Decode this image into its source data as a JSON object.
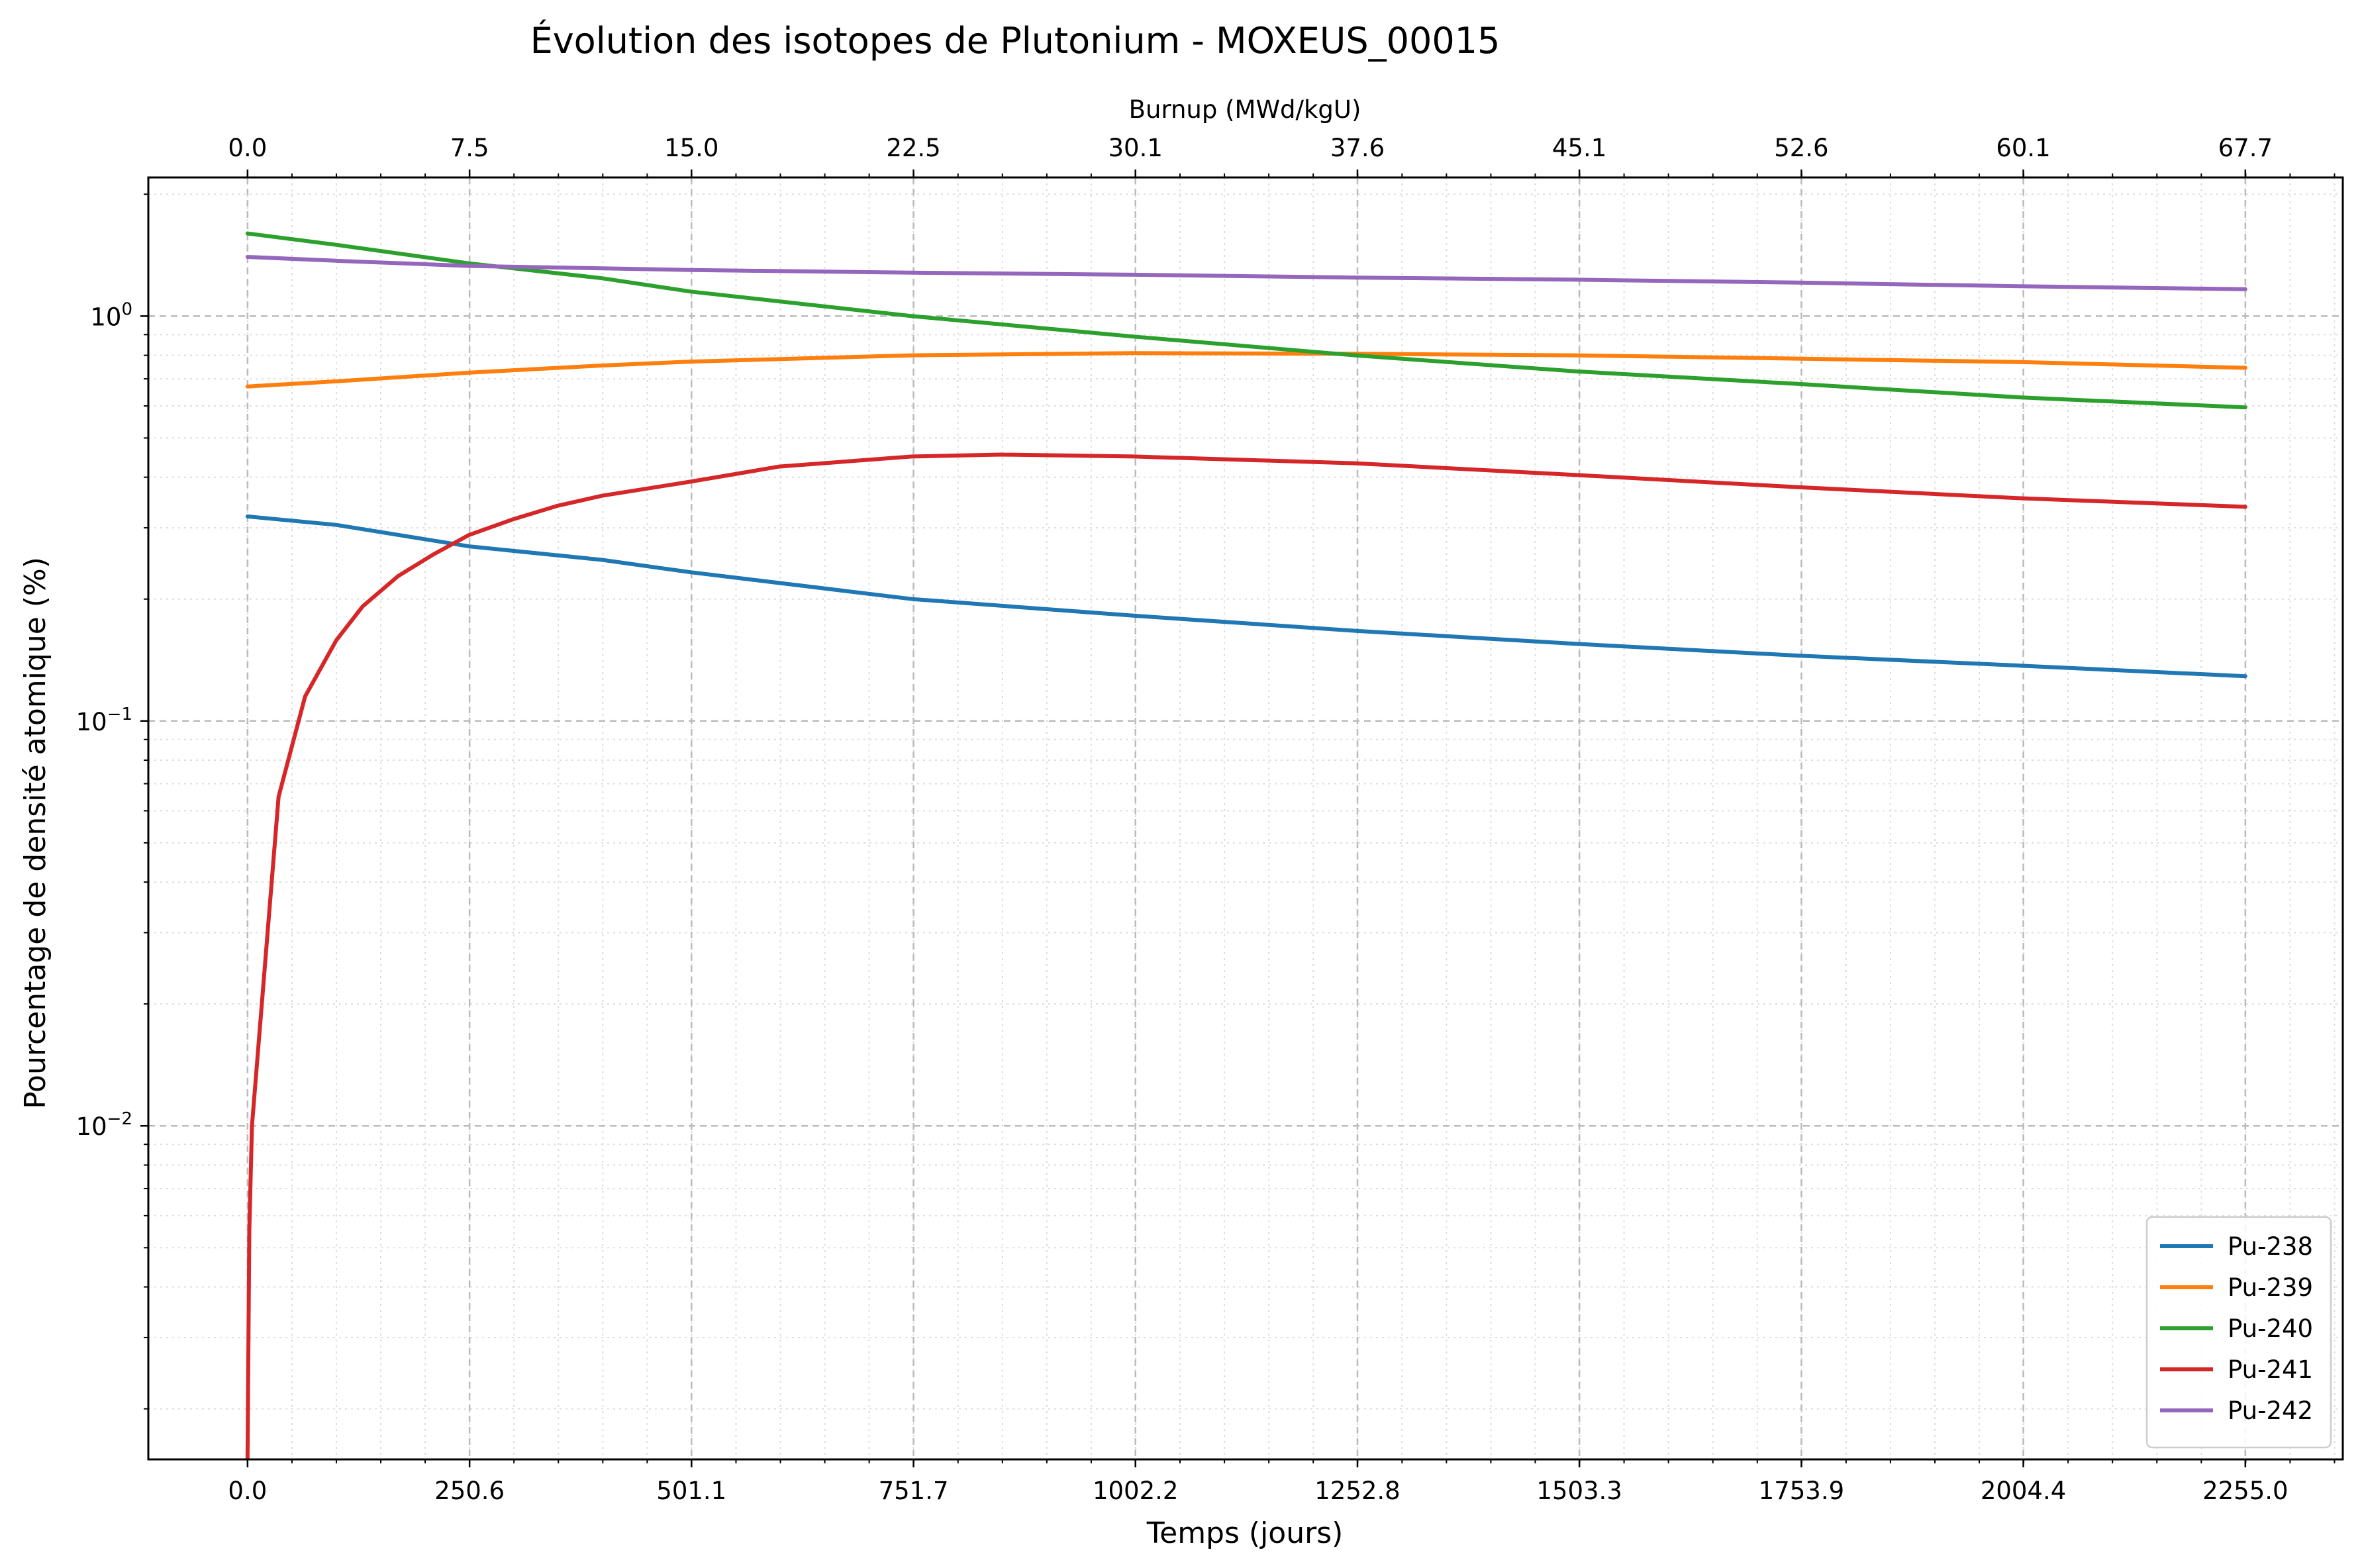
{
  "chart_data": {
    "type": "line",
    "title": "Évolution des isotopes de Plutonium - MOXEUS_00015",
    "xlabel": "Temps (jours)",
    "ylabel": "Pourcentage de densité atomique (%)",
    "top_xlabel": "Burnup (MWd/kgU)",
    "x_ticks": [
      "0.0",
      "250.6",
      "501.1",
      "751.7",
      "1002.2",
      "1252.8",
      "1503.3",
      "1753.9",
      "2004.4",
      "2255.0"
    ],
    "top_x_ticks": [
      "0.0",
      "7.5",
      "15.0",
      "22.5",
      "30.1",
      "37.6",
      "45.1",
      "52.6",
      "60.1",
      "67.7"
    ],
    "y_ticks": [
      {
        "base": "10",
        "exp": "0",
        "value": 1
      },
      {
        "base": "10",
        "exp": "−1",
        "value": 0.1
      },
      {
        "base": "10",
        "exp": "−2",
        "value": 0.01
      }
    ],
    "xlim": [
      -112,
      2365
    ],
    "ylim": [
      0.0015,
      2.2
    ],
    "y_scale": "log",
    "grid": true,
    "legend_position": "lower-right",
    "series": [
      {
        "name": "Pu-238",
        "color": "#1f77b4",
        "points": [
          [
            0,
            0.32
          ],
          [
            100,
            0.305
          ],
          [
            250,
            0.27
          ],
          [
            400,
            0.25
          ],
          [
            500,
            0.233
          ],
          [
            750,
            0.2
          ],
          [
            1000,
            0.182
          ],
          [
            1250,
            0.167
          ],
          [
            1500,
            0.155
          ],
          [
            1750,
            0.145
          ],
          [
            2000,
            0.137
          ],
          [
            2255,
            0.129
          ]
        ]
      },
      {
        "name": "Pu-239",
        "color": "#ff7f0e",
        "points": [
          [
            0,
            0.67
          ],
          [
            100,
            0.69
          ],
          [
            250,
            0.725
          ],
          [
            400,
            0.755
          ],
          [
            500,
            0.772
          ],
          [
            750,
            0.8
          ],
          [
            1000,
            0.81
          ],
          [
            1250,
            0.807
          ],
          [
            1500,
            0.8
          ],
          [
            1750,
            0.785
          ],
          [
            2000,
            0.77
          ],
          [
            2255,
            0.745
          ]
        ]
      },
      {
        "name": "Pu-240",
        "color": "#2ca02c",
        "points": [
          [
            0,
            1.6
          ],
          [
            100,
            1.5
          ],
          [
            250,
            1.35
          ],
          [
            400,
            1.24
          ],
          [
            500,
            1.15
          ],
          [
            750,
            1.0
          ],
          [
            1000,
            0.89
          ],
          [
            1250,
            0.8
          ],
          [
            1500,
            0.73
          ],
          [
            1750,
            0.68
          ],
          [
            2000,
            0.63
          ],
          [
            2255,
            0.595
          ]
        ]
      },
      {
        "name": "Pu-241",
        "color": "#d62728",
        "points": [
          [
            0,
            0.0015
          ],
          [
            2,
            0.0055
          ],
          [
            5,
            0.01
          ],
          [
            35,
            0.065
          ],
          [
            65,
            0.115
          ],
          [
            100,
            0.158
          ],
          [
            130,
            0.192
          ],
          [
            170,
            0.228
          ],
          [
            210,
            0.258
          ],
          [
            250,
            0.288
          ],
          [
            300,
            0.315
          ],
          [
            350,
            0.34
          ],
          [
            400,
            0.36
          ],
          [
            500,
            0.39
          ],
          [
            600,
            0.425
          ],
          [
            750,
            0.45
          ],
          [
            850,
            0.455
          ],
          [
            1000,
            0.45
          ],
          [
            1250,
            0.433
          ],
          [
            1500,
            0.405
          ],
          [
            1750,
            0.378
          ],
          [
            2000,
            0.355
          ],
          [
            2255,
            0.338
          ]
        ]
      },
      {
        "name": "Pu-242",
        "color": "#9467bd",
        "points": [
          [
            0,
            1.4
          ],
          [
            100,
            1.37
          ],
          [
            250,
            1.33
          ],
          [
            500,
            1.3
          ],
          [
            750,
            1.28
          ],
          [
            1000,
            1.265
          ],
          [
            1250,
            1.245
          ],
          [
            1500,
            1.23
          ],
          [
            1750,
            1.21
          ],
          [
            2000,
            1.185
          ],
          [
            2255,
            1.165
          ]
        ]
      }
    ]
  }
}
